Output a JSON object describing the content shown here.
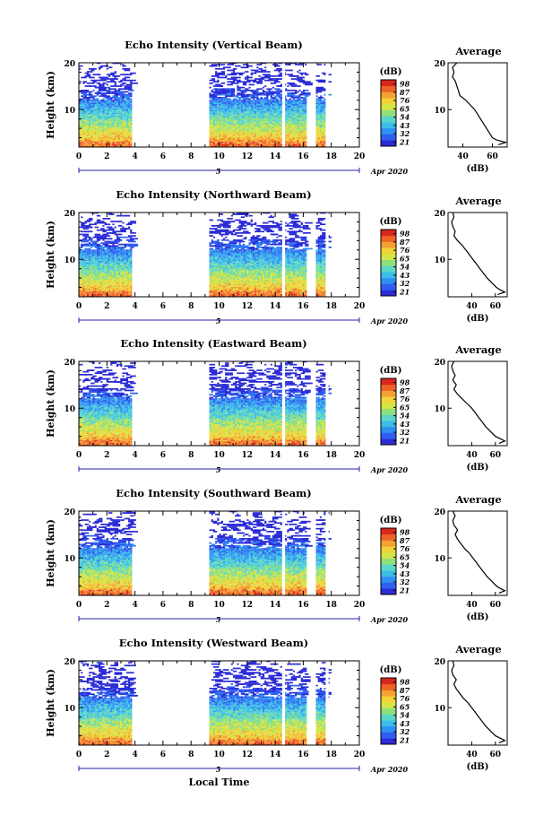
{
  "chart_data": [
    {
      "type": "heatmap",
      "title": "Echo Intensity (Vertical Beam)",
      "ylabel": "Height (km)",
      "xlabel": "",
      "xlim": [
        0,
        20
      ],
      "ylim": [
        2,
        20
      ],
      "xticks": [
        "0",
        "2",
        "4",
        "6",
        "8",
        "10",
        "12",
        "14",
        "16",
        "18",
        "20"
      ],
      "yticks": [
        "10",
        "20"
      ],
      "date_label": "5",
      "month_label": "Apr 2020",
      "colorbar": {
        "label": "(dB)",
        "ticks": [
          "21",
          "32",
          "43",
          "54",
          "65",
          "76",
          "87",
          "98"
        ],
        "range": [
          21,
          98
        ]
      },
      "data_blocks": [
        [
          0,
          3.8
        ],
        [
          9.3,
          14.5
        ],
        [
          14.7,
          16.2
        ],
        [
          16.9,
          17.5
        ]
      ],
      "gap_columns": [
        14.5,
        17.6
      ],
      "profile": {
        "title": "Average",
        "xlabel": "(dB)",
        "xticks": [
          "40",
          "60"
        ],
        "xlim": [
          30,
          70
        ],
        "heights": [
          2.5,
          3,
          3.5,
          4,
          5,
          6,
          7,
          8,
          9,
          10,
          11,
          12,
          13,
          14,
          15,
          16,
          17,
          18,
          19,
          20
        ],
        "values": [
          64,
          69,
          63,
          60,
          58,
          56,
          54,
          52,
          50,
          48,
          45,
          42,
          38,
          37,
          36,
          35,
          33,
          34,
          33,
          36
        ]
      }
    },
    {
      "type": "heatmap",
      "title": "Echo Intensity (Northward Beam)",
      "ylabel": "Height (km)",
      "xlabel": "",
      "xlim": [
        0,
        20
      ],
      "ylim": [
        2,
        20
      ],
      "xticks": [
        "0",
        "2",
        "4",
        "6",
        "8",
        "10",
        "12",
        "14",
        "16",
        "18",
        "20"
      ],
      "yticks": [
        "10",
        "20"
      ],
      "date_label": "5",
      "month_label": "Apr 2020",
      "colorbar": {
        "label": "(dB)",
        "ticks": [
          "21",
          "32",
          "43",
          "54",
          "65",
          "76",
          "87",
          "98"
        ],
        "range": [
          21,
          98
        ]
      },
      "data_blocks": [
        [
          0,
          3.8
        ],
        [
          9.3,
          14.5
        ],
        [
          14.7,
          16.2
        ],
        [
          16.9,
          17.5
        ]
      ],
      "gap_columns": [
        14.5,
        17.6
      ],
      "profile": {
        "title": "Average",
        "xlabel": "(dB)",
        "xticks": [
          "40",
          "60"
        ],
        "xlim": [
          20,
          70
        ],
        "heights": [
          2.5,
          3,
          3.5,
          4,
          5,
          6,
          7,
          8,
          9,
          10,
          11,
          12,
          13,
          14,
          15,
          16,
          17,
          18,
          19,
          20
        ],
        "values": [
          62,
          68,
          64,
          61,
          57,
          53,
          50,
          47,
          44,
          41,
          38,
          35,
          32,
          28,
          25,
          26,
          24,
          23,
          25,
          24
        ]
      }
    },
    {
      "type": "heatmap",
      "title": "Echo Intensity (Eastward Beam)",
      "ylabel": "Height (km)",
      "xlabel": "",
      "xlim": [
        0,
        20
      ],
      "ylim": [
        2,
        20
      ],
      "xticks": [
        "0",
        "2",
        "4",
        "6",
        "8",
        "10",
        "12",
        "14",
        "16",
        "18",
        "20"
      ],
      "yticks": [
        "10",
        "20"
      ],
      "date_label": "5",
      "month_label": "Apr 2020",
      "colorbar": {
        "label": "(dB)",
        "ticks": [
          "21",
          "32",
          "43",
          "54",
          "65",
          "76",
          "87",
          "98"
        ],
        "range": [
          21,
          98
        ]
      },
      "data_blocks": [
        [
          0,
          3.8
        ],
        [
          9.3,
          14.5
        ],
        [
          14.7,
          16.2
        ],
        [
          16.9,
          17.5
        ]
      ],
      "gap_columns": [
        14.5,
        17.6
      ],
      "profile": {
        "title": "Average",
        "xlabel": "(dB)",
        "xticks": [
          "40",
          "60"
        ],
        "xlim": [
          20,
          70
        ],
        "heights": [
          2.5,
          3,
          3.5,
          4,
          5,
          6,
          7,
          8,
          9,
          10,
          11,
          12,
          13,
          14,
          15,
          16,
          17,
          18,
          19,
          20
        ],
        "values": [
          63,
          68,
          64,
          60,
          56,
          52,
          49,
          46,
          43,
          40,
          36,
          32,
          28,
          25,
          27,
          24,
          26,
          24,
          23,
          25
        ]
      }
    },
    {
      "type": "heatmap",
      "title": "Echo Intensity (Southward Beam)",
      "ylabel": "Height (km)",
      "xlabel": "",
      "xlim": [
        0,
        20
      ],
      "ylim": [
        2,
        20
      ],
      "xticks": [
        "0",
        "2",
        "4",
        "6",
        "8",
        "10",
        "12",
        "14",
        "16",
        "18",
        "20"
      ],
      "yticks": [
        "10",
        "20"
      ],
      "date_label": "5",
      "month_label": "Apr 2020",
      "colorbar": {
        "label": "(dB)",
        "ticks": [
          "21",
          "32",
          "43",
          "54",
          "65",
          "76",
          "87",
          "98"
        ],
        "range": [
          21,
          98
        ]
      },
      "data_blocks": [
        [
          0,
          3.8
        ],
        [
          9.3,
          14.5
        ],
        [
          14.7,
          16.2
        ],
        [
          16.9,
          17.5
        ]
      ],
      "gap_columns": [
        14.5,
        17.6
      ],
      "profile": {
        "title": "Average",
        "xlabel": "(dB)",
        "xticks": [
          "40",
          "60"
        ],
        "xlim": [
          20,
          70
        ],
        "heights": [
          2.5,
          3,
          3.5,
          4,
          5,
          6,
          7,
          8,
          9,
          10,
          11,
          12,
          13,
          14,
          15,
          16,
          17,
          18,
          19,
          20
        ],
        "values": [
          63,
          68,
          64,
          61,
          57,
          53,
          50,
          47,
          44,
          41,
          38,
          34,
          31,
          28,
          26,
          28,
          25,
          24,
          26,
          24
        ]
      }
    },
    {
      "type": "heatmap",
      "title": "Echo Intensity (Westward Beam)",
      "ylabel": "Height (km)",
      "xlabel": "Local Time",
      "xlim": [
        0,
        20
      ],
      "ylim": [
        2,
        20
      ],
      "xticks": [
        "0",
        "2",
        "4",
        "6",
        "8",
        "10",
        "12",
        "14",
        "16",
        "18",
        "20"
      ],
      "yticks": [
        "10",
        "20"
      ],
      "date_label": "5",
      "month_label": "Apr 2020",
      "colorbar": {
        "label": "(dB)",
        "ticks": [
          "21",
          "32",
          "43",
          "54",
          "65",
          "76",
          "87",
          "98"
        ],
        "range": [
          21,
          98
        ]
      },
      "data_blocks": [
        [
          0,
          3.8
        ],
        [
          9.3,
          14.5
        ],
        [
          14.7,
          16.2
        ],
        [
          16.9,
          17.5
        ]
      ],
      "gap_columns": [
        14.5,
        17.6
      ],
      "profile": {
        "title": "Average",
        "xlabel": "(dB)",
        "xticks": [
          "40",
          "60"
        ],
        "xlim": [
          20,
          70
        ],
        "heights": [
          2.5,
          3,
          3.5,
          4,
          5,
          6,
          7,
          8,
          9,
          10,
          11,
          12,
          13,
          14,
          15,
          16,
          17,
          18,
          19,
          20
        ],
        "values": [
          63,
          68,
          64,
          60,
          56,
          52,
          49,
          46,
          43,
          40,
          37,
          33,
          30,
          27,
          25,
          27,
          24,
          23,
          25,
          24
        ]
      }
    }
  ],
  "colormap": [
    "#2b2bd6",
    "#2f5ef0",
    "#2f8ff2",
    "#3bbde8",
    "#5ad6c8",
    "#8ee07a",
    "#d2e646",
    "#f2d238",
    "#f5a032",
    "#ee6228",
    "#d8281c"
  ]
}
